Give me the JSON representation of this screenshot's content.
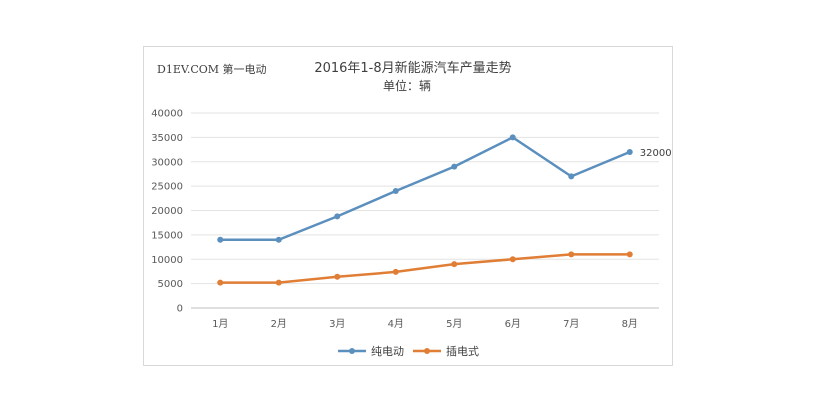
{
  "watermark": "D1EV.COM 第一电动",
  "chart_data": {
    "type": "line",
    "title": "2016年1-8月新能源汽车产量走势",
    "subtitle": "单位：辆",
    "xlabel": "",
    "ylabel": "",
    "categories": [
      "1月",
      "2月",
      "3月",
      "4月",
      "5月",
      "6月",
      "7月",
      "8月"
    ],
    "ylim": [
      0,
      40000
    ],
    "yticks": [
      0,
      5000,
      10000,
      15000,
      20000,
      25000,
      30000,
      35000,
      40000
    ],
    "grid": true,
    "legend_position": "bottom",
    "series": [
      {
        "name": "纯电动",
        "color": "#5b8fbd",
        "values": [
          14000,
          14000,
          18800,
          24000,
          29000,
          35000,
          27000,
          32000
        ]
      },
      {
        "name": "插电式",
        "color": "#e07e36",
        "values": [
          5200,
          5200,
          6400,
          7400,
          9000,
          10000,
          11000,
          11000
        ]
      }
    ],
    "annotations": [
      {
        "series": 0,
        "index": 7,
        "text": "32000"
      }
    ]
  }
}
